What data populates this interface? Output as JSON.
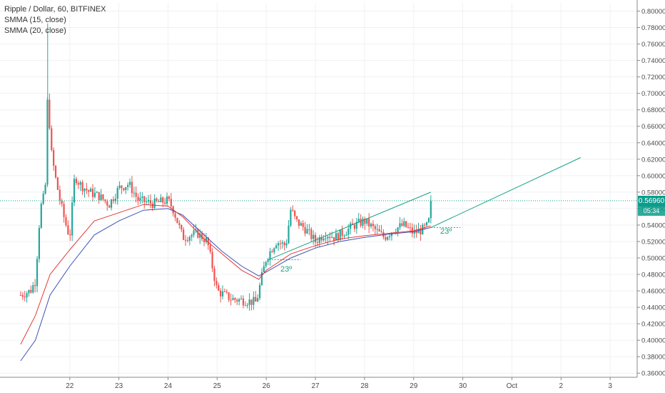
{
  "legend": {
    "title": "Ripple / Dollar, 60, BITFINEX",
    "ind1": "SMMA (15, close)",
    "ind2": "SMMA (20, close)"
  },
  "price_tag": {
    "value": "0.56960",
    "countdown": "05:34",
    "color": "#0a9d8c"
  },
  "colors": {
    "up": "#26a69a",
    "down": "#ef5350",
    "smma15": "#e53935",
    "smma20": "#3f51b5",
    "trend": "#16a085",
    "grid": "#eef1f4"
  },
  "chart_data": {
    "type": "candlestick",
    "ylim": [
      0.355,
      0.81
    ],
    "yticks": [
      "0.36000",
      "0.38000",
      "0.40000",
      "0.42000",
      "0.44000",
      "0.46000",
      "0.48000",
      "0.50000",
      "0.52000",
      "0.54000",
      "0.56000",
      "0.58000",
      "0.60000",
      "0.62000",
      "0.64000",
      "0.66000",
      "0.68000",
      "0.70000",
      "0.72000",
      "0.74000",
      "0.76000",
      "0.78000",
      "0.80000"
    ],
    "xticks": [
      {
        "label": "22",
        "t": 1
      },
      {
        "label": "23",
        "t": 2
      },
      {
        "label": "24",
        "t": 3
      },
      {
        "label": "25",
        "t": 4
      },
      {
        "label": "26",
        "t": 5
      },
      {
        "label": "27",
        "t": 6
      },
      {
        "label": "28",
        "t": 7
      },
      {
        "label": "29",
        "t": 8
      },
      {
        "label": "30",
        "t": 9
      },
      {
        "label": "Oct",
        "t": 10
      },
      {
        "label": "2",
        "t": 11
      },
      {
        "label": "3",
        "t": 12
      }
    ],
    "t_range": [
      0.0,
      12.5
    ],
    "candles_keypoints": [
      [
        0.0,
        0.455
      ],
      [
        0.2,
        0.46
      ],
      [
        0.3,
        0.472
      ],
      [
        0.4,
        0.56
      ],
      [
        0.5,
        0.58
      ],
      [
        0.55,
        0.7
      ],
      [
        0.62,
        0.63
      ],
      [
        0.7,
        0.6
      ],
      [
        0.8,
        0.57
      ],
      [
        0.9,
        0.545
      ],
      [
        1.0,
        0.525
      ],
      [
        1.1,
        0.6
      ],
      [
        1.2,
        0.59
      ],
      [
        1.4,
        0.58
      ],
      [
        1.6,
        0.575
      ],
      [
        1.8,
        0.565
      ],
      [
        2.0,
        0.585
      ],
      [
        2.2,
        0.59
      ],
      [
        2.4,
        0.57
      ],
      [
        2.7,
        0.566
      ],
      [
        3.0,
        0.57
      ],
      [
        3.1,
        0.56
      ],
      [
        3.3,
        0.525
      ],
      [
        3.6,
        0.53
      ],
      [
        3.8,
        0.52
      ],
      [
        4.0,
        0.46
      ],
      [
        4.3,
        0.45
      ],
      [
        4.6,
        0.448
      ],
      [
        4.8,
        0.446
      ],
      [
        4.9,
        0.475
      ],
      [
        5.0,
        0.5
      ],
      [
        5.2,
        0.52
      ],
      [
        5.4,
        0.515
      ],
      [
        5.5,
        0.56
      ],
      [
        5.6,
        0.545
      ],
      [
        5.8,
        0.535
      ],
      [
        6.0,
        0.52
      ],
      [
        6.2,
        0.53
      ],
      [
        6.4,
        0.525
      ],
      [
        6.6,
        0.532
      ],
      [
        6.8,
        0.54
      ],
      [
        7.0,
        0.545
      ],
      [
        7.2,
        0.535
      ],
      [
        7.4,
        0.525
      ],
      [
        7.6,
        0.535
      ],
      [
        7.8,
        0.54
      ],
      [
        8.0,
        0.53
      ],
      [
        8.2,
        0.535
      ],
      [
        8.3,
        0.54
      ],
      [
        8.35,
        0.5696
      ]
    ],
    "smma15_points": [
      [
        0.0,
        0.395
      ],
      [
        0.3,
        0.43
      ],
      [
        0.6,
        0.48
      ],
      [
        1.0,
        0.51
      ],
      [
        1.5,
        0.545
      ],
      [
        2.0,
        0.555
      ],
      [
        2.5,
        0.565
      ],
      [
        3.0,
        0.563
      ],
      [
        3.3,
        0.55
      ],
      [
        3.7,
        0.525
      ],
      [
        4.1,
        0.505
      ],
      [
        4.5,
        0.485
      ],
      [
        4.85,
        0.474
      ],
      [
        5.0,
        0.485
      ],
      [
        5.5,
        0.505
      ],
      [
        6.0,
        0.515
      ],
      [
        6.5,
        0.523
      ],
      [
        7.0,
        0.527
      ],
      [
        7.5,
        0.53
      ],
      [
        8.0,
        0.533
      ],
      [
        8.35,
        0.539
      ]
    ],
    "smma20_points": [
      [
        0.0,
        0.375
      ],
      [
        0.3,
        0.4
      ],
      [
        0.6,
        0.455
      ],
      [
        1.0,
        0.49
      ],
      [
        1.5,
        0.528
      ],
      [
        2.0,
        0.545
      ],
      [
        2.5,
        0.558
      ],
      [
        3.0,
        0.56
      ],
      [
        3.3,
        0.552
      ],
      [
        3.7,
        0.53
      ],
      [
        4.1,
        0.508
      ],
      [
        4.5,
        0.49
      ],
      [
        4.85,
        0.478
      ],
      [
        5.0,
        0.483
      ],
      [
        5.5,
        0.5
      ],
      [
        6.0,
        0.512
      ],
      [
        6.5,
        0.52
      ],
      [
        7.0,
        0.525
      ],
      [
        7.5,
        0.529
      ],
      [
        8.0,
        0.532
      ],
      [
        8.35,
        0.537
      ]
    ],
    "last_price": 0.5696,
    "annotations": [
      {
        "label": "23º"
      },
      {
        "label": "23º"
      }
    ]
  }
}
